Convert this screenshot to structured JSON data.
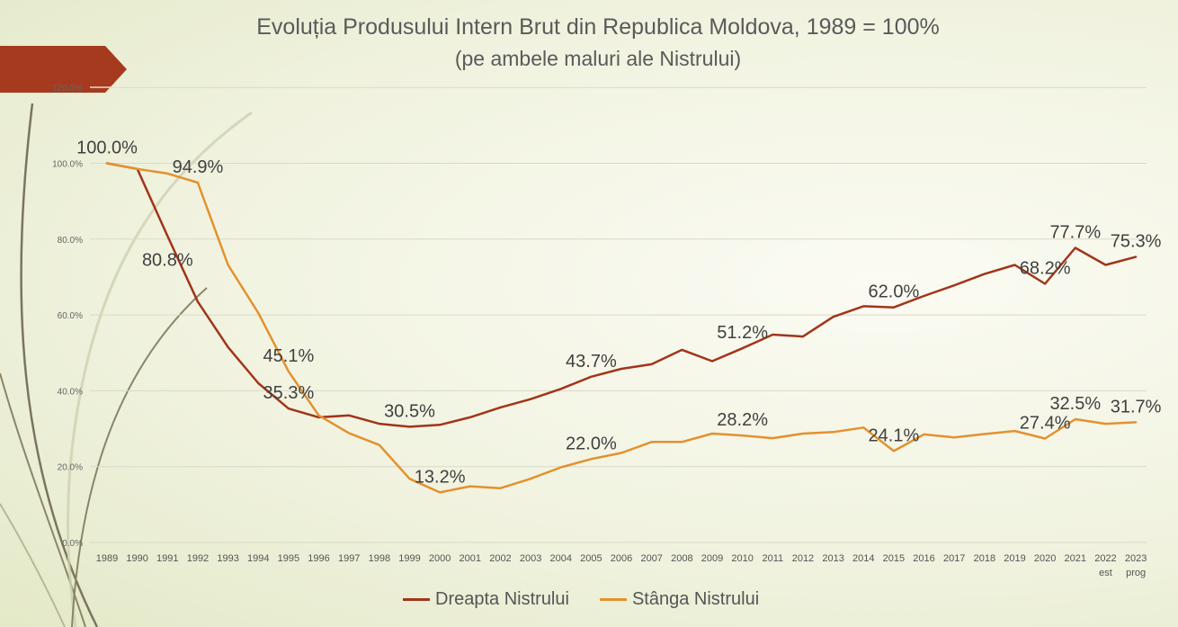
{
  "title": "Evoluția Produsului Intern Brut din Republica Moldova, 1989 = 100%",
  "subtitle": "(pe ambele maluri ale Nistrului)",
  "chart_data": {
    "type": "line",
    "x": [
      "1989",
      "1990",
      "1991",
      "1992",
      "1993",
      "1994",
      "1995",
      "1996",
      "1997",
      "1998",
      "1999",
      "2000",
      "2001",
      "2002",
      "2003",
      "2004",
      "2005",
      "2006",
      "2007",
      "2008",
      "2009",
      "2010",
      "2011",
      "2012",
      "2013",
      "2014",
      "2015",
      "2016",
      "2017",
      "2018",
      "2019",
      "2020",
      "2021",
      "2022",
      "2023"
    ],
    "x_sublabels": {
      "2022": "est",
      "2023": "prog"
    },
    "yticks": [
      "0.0%",
      "20.0%",
      "40.0%",
      "60.0%",
      "80.0%",
      "100.0%",
      "120.0%"
    ],
    "ylim": [
      0,
      120
    ],
    "grid": true,
    "legend_position": "bottom",
    "series": [
      {
        "name": "Dreapta Nistrului",
        "color": "#a1351a",
        "values": [
          100,
          98.5,
          80.8,
          63.5,
          51.5,
          42,
          35.3,
          33,
          33.5,
          31.3,
          30.5,
          31,
          33,
          35.6,
          37.8,
          40.5,
          43.7,
          45.8,
          47,
          50.8,
          47.8,
          51.2,
          54.8,
          54.3,
          59.5,
          62.3,
          62,
          65,
          67.8,
          70.8,
          73.2,
          68.2,
          77.7,
          73.2,
          75.3
        ],
        "labels": [
          [
            "1989",
            "100.0%"
          ],
          [
            "1991",
            "80.8%"
          ],
          [
            "1995",
            "35.3%"
          ],
          [
            "1999",
            "30.5%"
          ],
          [
            "2005",
            "43.7%"
          ],
          [
            "2010",
            "51.2%"
          ],
          [
            "2015",
            "62.0%"
          ],
          [
            "2020",
            "68.2%"
          ],
          [
            "2021",
            "77.7%"
          ],
          [
            "2023",
            "75.3%"
          ]
        ]
      },
      {
        "name": "Stânga Nistrului",
        "color": "#e3912e",
        "values": [
          100,
          98.5,
          97.3,
          94.9,
          73.2,
          60.5,
          45.1,
          33.5,
          28.8,
          25.7,
          16.8,
          13.2,
          14.8,
          14.3,
          16.8,
          19.8,
          22,
          23.6,
          26.5,
          26.5,
          28.7,
          28.2,
          27.5,
          28.7,
          29.1,
          30.3,
          24.1,
          28.5,
          27.7,
          28.6,
          29.4,
          27.4,
          32.5,
          31.3,
          31.7
        ],
        "labels": [
          [
            "1992",
            "94.9%"
          ],
          [
            "1995",
            "45.1%"
          ],
          [
            "2000",
            "13.2%"
          ],
          [
            "2005",
            "22.0%"
          ],
          [
            "2010",
            "28.2%"
          ],
          [
            "2015",
            "24.1%"
          ],
          [
            "2020",
            "27.4%"
          ],
          [
            "2021",
            "32.5%"
          ],
          [
            "2023",
            "31.7%"
          ]
        ]
      }
    ]
  }
}
